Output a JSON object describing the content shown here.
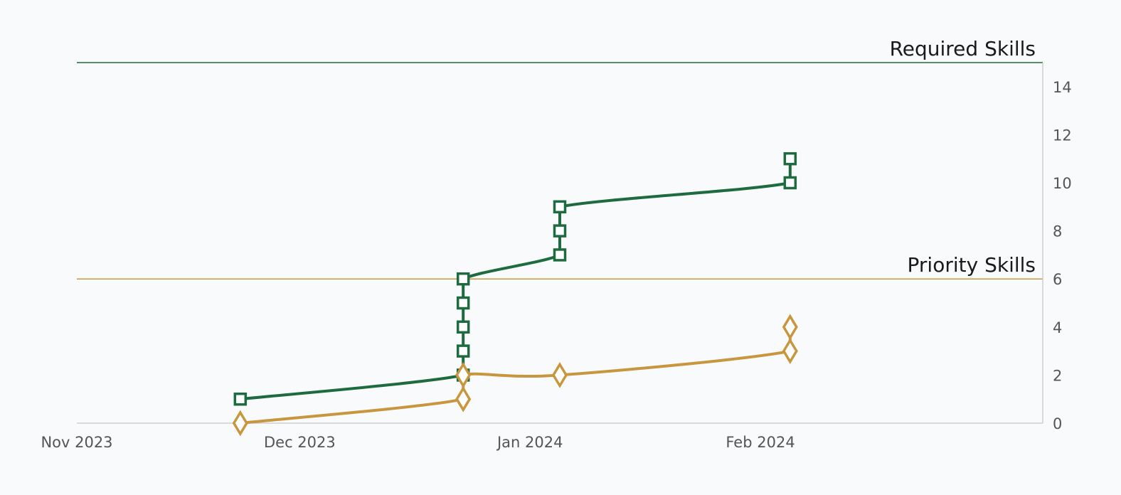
{
  "chart_data": {
    "type": "line",
    "x_axis": {
      "type": "date",
      "range": [
        "2023-11-01",
        "2024-03-10"
      ],
      "ticks": [
        {
          "date": "2023-11-01",
          "label": "Nov 2023"
        },
        {
          "date": "2023-12-01",
          "label": "Dec 2023"
        },
        {
          "date": "2024-01-01",
          "label": "Jan 2024"
        },
        {
          "date": "2024-02-01",
          "label": "Feb 2024"
        }
      ]
    },
    "y_axis": {
      "position": "right",
      "range": [
        0,
        15
      ],
      "ticks": [
        0,
        2,
        4,
        6,
        8,
        10,
        12,
        14
      ]
    },
    "grid": false,
    "reference_lines": [
      {
        "label": "Required Skills",
        "y": 15,
        "color": "#1e6b3f"
      },
      {
        "label": "Priority Skills",
        "y": 6,
        "color": "#c8963e"
      }
    ],
    "series": [
      {
        "color": "#1e6b3f",
        "marker": "square",
        "points": [
          {
            "x": "2023-11-23",
            "y": 1
          },
          {
            "x": "2023-12-23",
            "y": 2
          },
          {
            "x": "2023-12-23",
            "y": 3
          },
          {
            "x": "2023-12-23",
            "y": 4
          },
          {
            "x": "2023-12-23",
            "y": 5
          },
          {
            "x": "2023-12-23",
            "y": 6
          },
          {
            "x": "2024-01-05",
            "y": 7
          },
          {
            "x": "2024-01-05",
            "y": 8
          },
          {
            "x": "2024-01-05",
            "y": 9
          },
          {
            "x": "2024-02-05",
            "y": 10
          },
          {
            "x": "2024-02-05",
            "y": 11
          }
        ]
      },
      {
        "color": "#c8963e",
        "marker": "diamond",
        "points": [
          {
            "x": "2023-11-23",
            "y": 0
          },
          {
            "x": "2023-12-23",
            "y": 1
          },
          {
            "x": "2023-12-23",
            "y": 2
          },
          {
            "x": "2024-01-05",
            "y": 2
          },
          {
            "x": "2024-02-05",
            "y": 3
          },
          {
            "x": "2024-02-05",
            "y": 4
          }
        ]
      }
    ]
  }
}
